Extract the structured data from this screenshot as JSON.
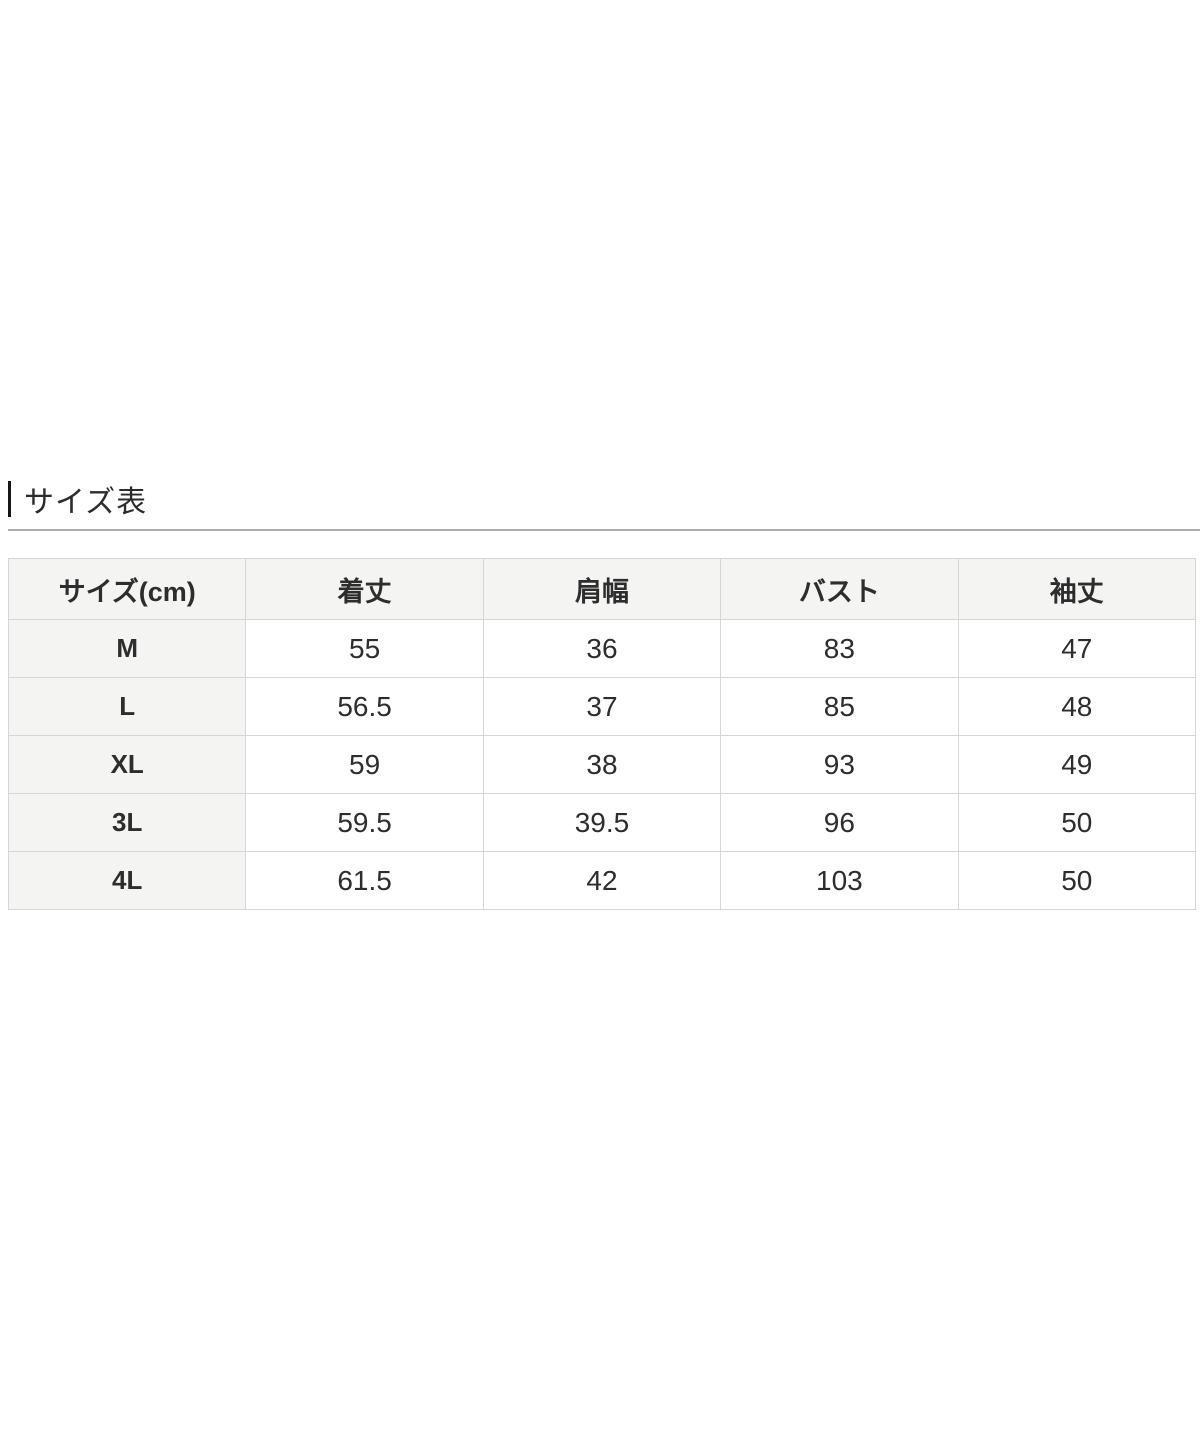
{
  "section_title": {
    "text": "サイズ表"
  },
  "colors": {
    "accent_bar": "#161616",
    "divider": "#aeaca9",
    "table_border": "#d6d6d3",
    "header_bg": "#f4f4f2",
    "text": "#2d2d2d",
    "page_bg": "#ffffff"
  },
  "chart_data": {
    "type": "table",
    "title": "サイズ表",
    "columns": [
      "サイズ(cm)",
      "着丈",
      "肩幅",
      "バスト",
      "袖丈"
    ],
    "rows": [
      [
        "M",
        "55",
        "36",
        "83",
        "47"
      ],
      [
        "L",
        "56.5",
        "37",
        "85",
        "48"
      ],
      [
        "XL",
        "59",
        "38",
        "93",
        "49"
      ],
      [
        "3L",
        "59.5",
        "39.5",
        "96",
        "50"
      ],
      [
        "4L",
        "61.5",
        "42",
        "103",
        "50"
      ]
    ]
  }
}
